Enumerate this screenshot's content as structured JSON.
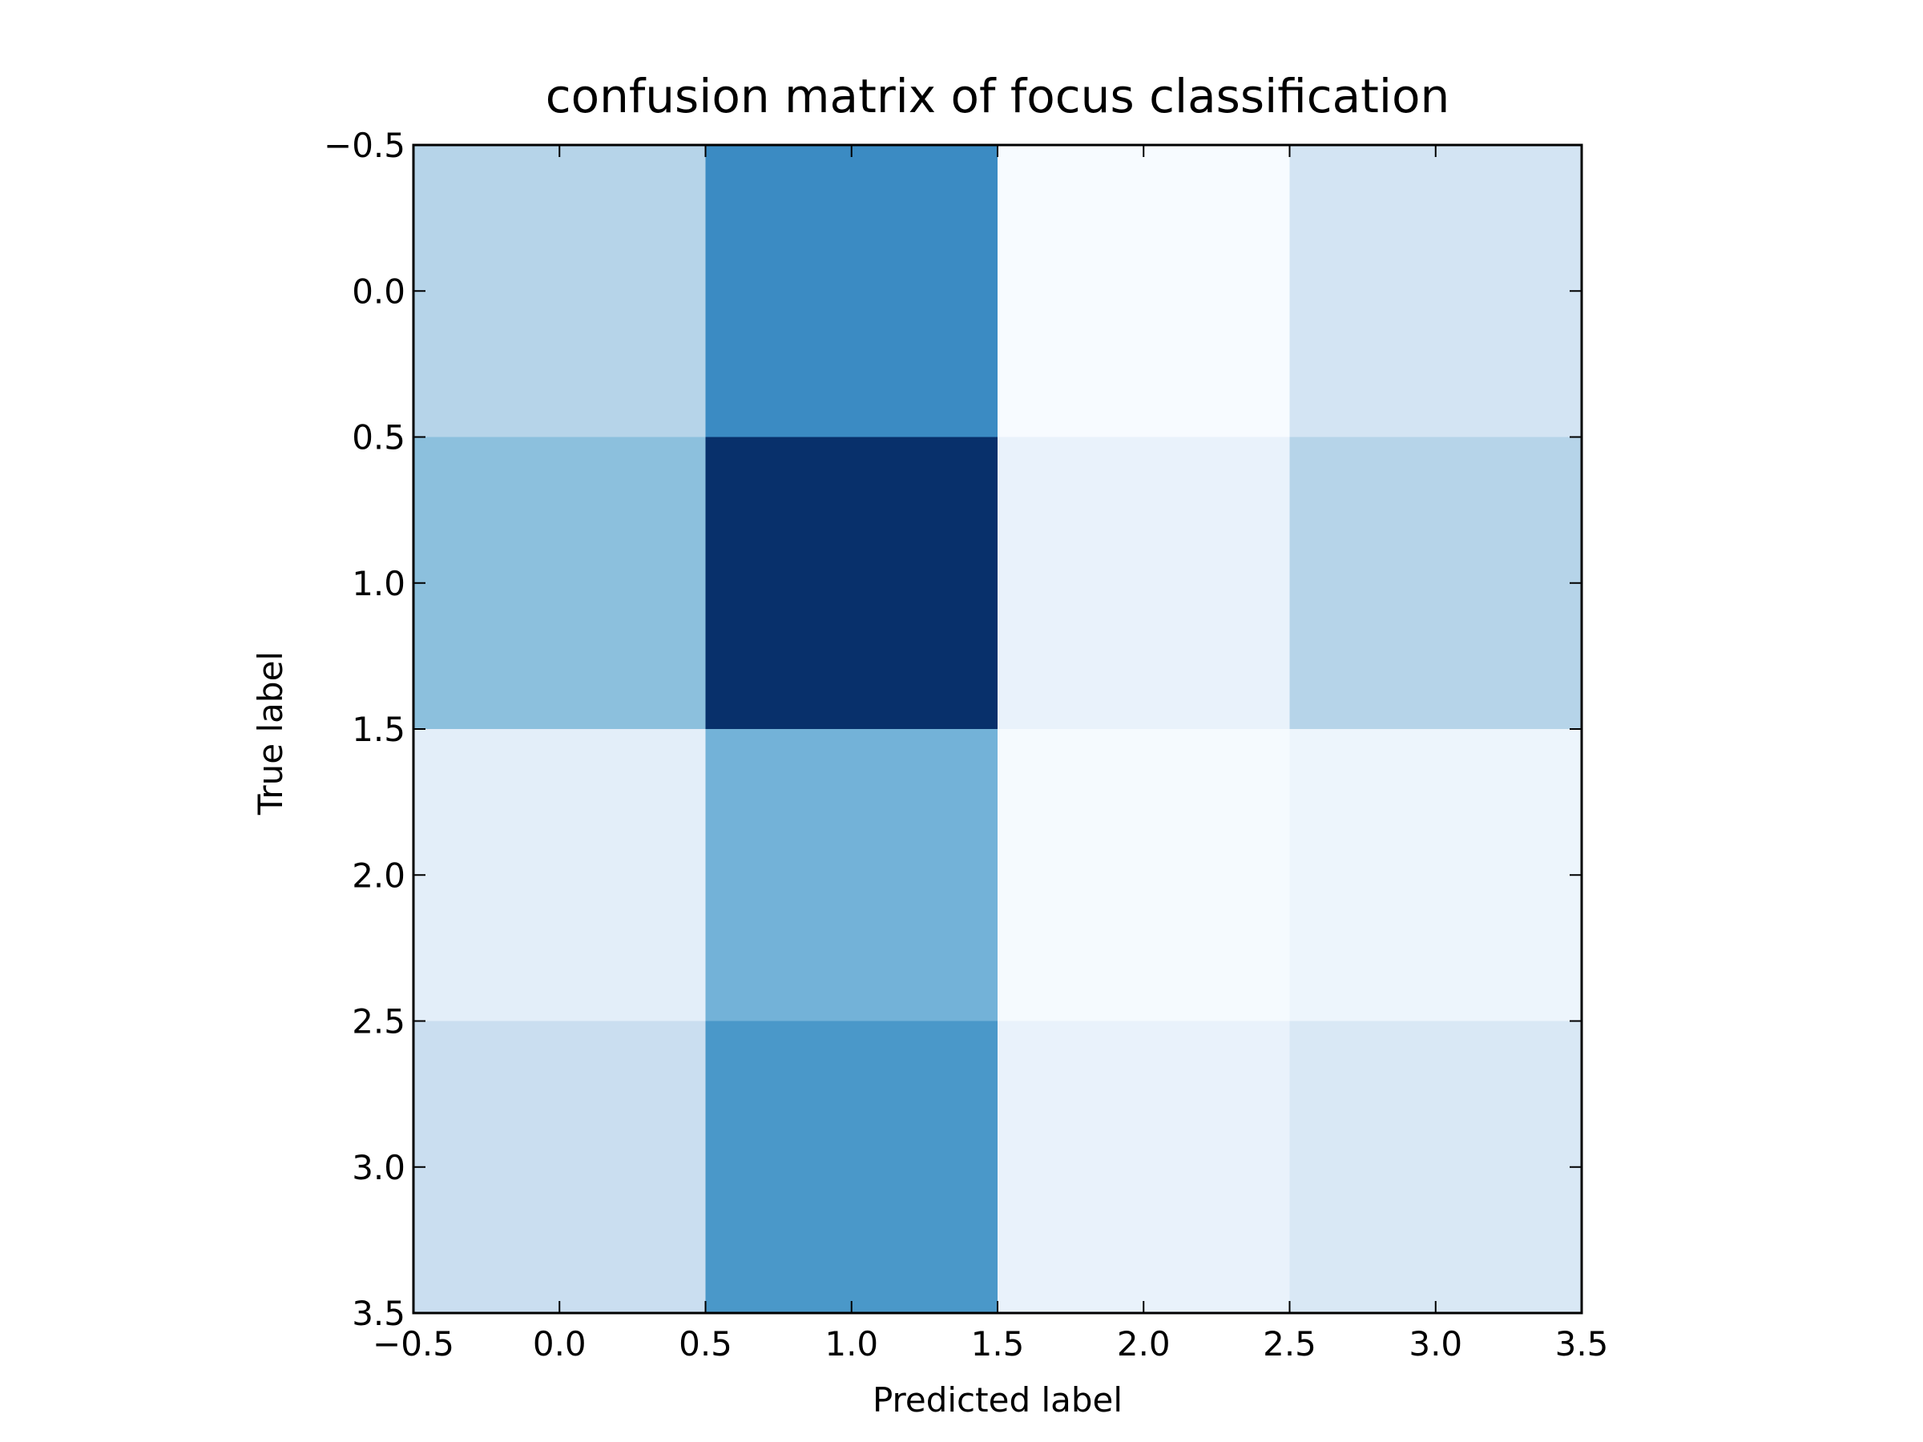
{
  "chart_data": {
    "type": "heatmap",
    "title": "confusion matrix of focus classification",
    "xlabel": "Predicted label",
    "ylabel": "True label",
    "colormap": "Blues",
    "z": [
      [
        0.3,
        0.65,
        0.0,
        0.18
      ],
      [
        0.42,
        1.0,
        0.07,
        0.3
      ],
      [
        0.1,
        0.48,
        0.01,
        0.05
      ],
      [
        0.23,
        0.6,
        0.07,
        0.15
      ]
    ],
    "xlim": [
      -0.5,
      3.5
    ],
    "ylim": [
      3.5,
      -0.5
    ],
    "xticks": [
      {
        "value": -0.5,
        "label": "−0.5"
      },
      {
        "value": 0,
        "label": "0.0"
      },
      0.5,
      {
        "value": 1,
        "label": "1.0"
      },
      1.5,
      {
        "value": 2,
        "label": "2.0"
      },
      2.5,
      {
        "value": 3,
        "label": "3.0"
      },
      3.5
    ],
    "yticks": [
      {
        "value": -0.5,
        "label": "−0.5"
      },
      {
        "value": 0,
        "label": "0.0"
      },
      0.5,
      {
        "value": 1,
        "label": "1.0"
      },
      1.5,
      {
        "value": 2,
        "label": "2.0"
      },
      2.5,
      {
        "value": 3,
        "label": "3.0"
      },
      3.5
    ]
  }
}
